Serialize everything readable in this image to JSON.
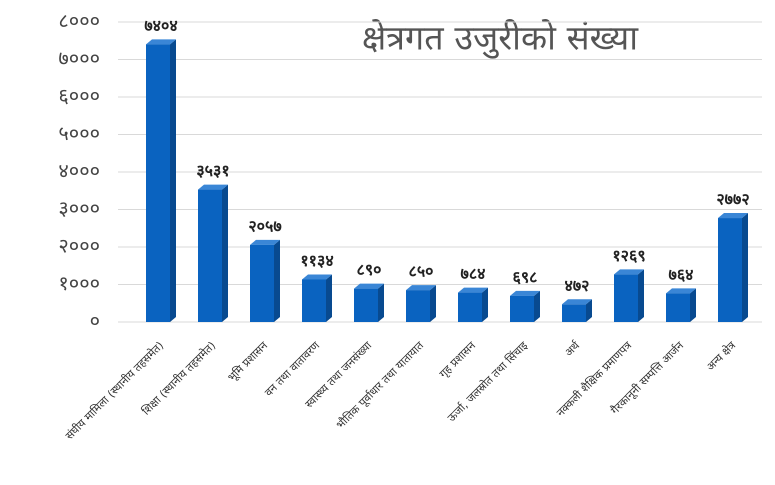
{
  "chart_data": {
    "type": "bar",
    "title": "क्षेत्रगत उजुरीको संख्या",
    "categories": [
      "संघीय मामिला (स्थानीय तहसमेत)",
      "शिक्षा (स्थानीय तहसमेत)",
      "भूमि प्रशासन",
      "वन तथा वातावरण",
      "स्वास्थ्य तथा जनसंख्या",
      "भौतिक पूर्वाधार तथा यातायात",
      "गृह प्रशासन",
      "ऊर्जा, जलस्रोत तथा सिंचाइ",
      "अर्थ",
      "नक्कली शैक्षिक प्रमाणपत्र",
      "गैरकानूनी सम्पत्ति आर्जन",
      "अन्य क्षेत्र"
    ],
    "values": [
      7404,
      3531,
      2057,
      1134,
      890,
      850,
      784,
      698,
      472,
      1269,
      764,
      2772
    ],
    "value_labels": [
      "७४०४",
      "३५३१",
      "२०५७",
      "११३४",
      "८९०",
      "८५०",
      "७८४",
      "६९८",
      "४७२",
      "१२६९",
      "७६४",
      "२७७२"
    ],
    "color": "#0a63c0",
    "ylim": [
      0,
      8000
    ],
    "yticks": [
      {
        "value": 0,
        "label": "०"
      },
      {
        "value": 1000,
        "label": "१०००"
      },
      {
        "value": 2000,
        "label": "२०००"
      },
      {
        "value": 3000,
        "label": "३०००"
      },
      {
        "value": 4000,
        "label": "४०००"
      },
      {
        "value": 5000,
        "label": "५०००"
      },
      {
        "value": 6000,
        "label": "६०००"
      },
      {
        "value": 7000,
        "label": "७०००"
      },
      {
        "value": 8000,
        "label": "८०००"
      }
    ],
    "grid": true
  }
}
